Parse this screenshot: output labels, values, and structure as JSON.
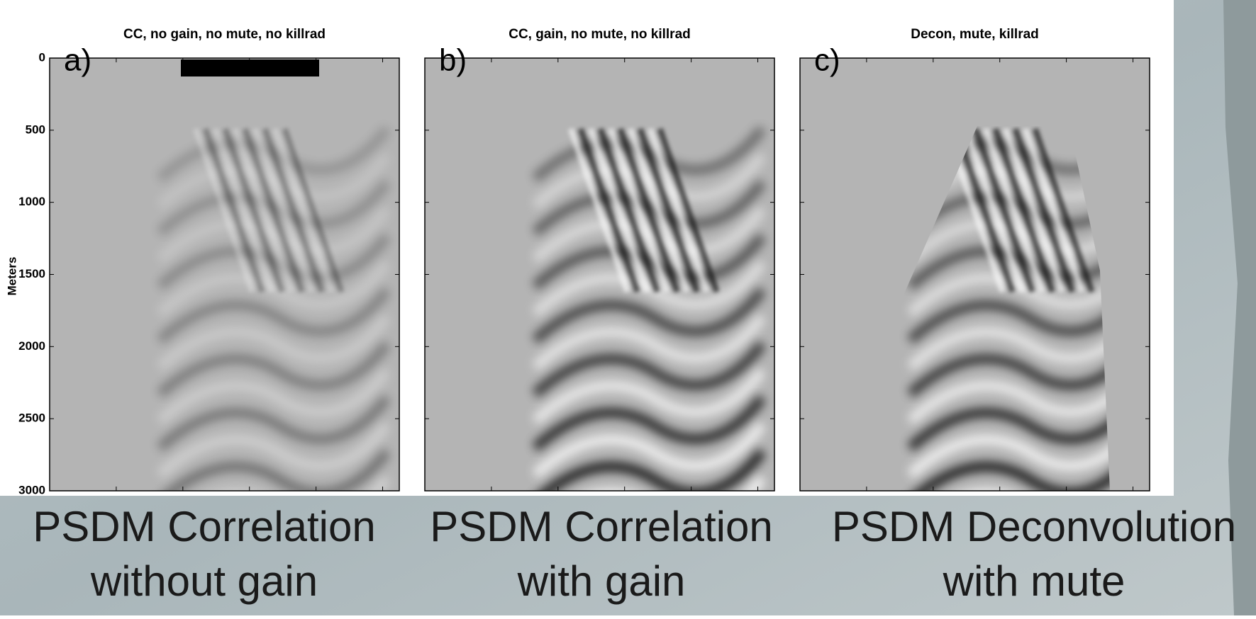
{
  "y_axis": {
    "label": "Meters",
    "ticks": [
      "0",
      "500",
      "1000",
      "1500",
      "2000",
      "2500",
      "3000"
    ]
  },
  "panels": [
    {
      "title": "CC, no gain, no mute, no killrad",
      "letter": "a)",
      "caption": [
        "PSDM Correlation",
        "without gain"
      ]
    },
    {
      "title": "CC, gain, no mute, no killrad",
      "letter": "b)",
      "caption": [
        "PSDM Correlation",
        "with gain"
      ]
    },
    {
      "title": "Decon, mute, killrad",
      "letter": "c)",
      "caption": [
        "PSDM Deconvolution",
        "with mute"
      ]
    }
  ]
}
